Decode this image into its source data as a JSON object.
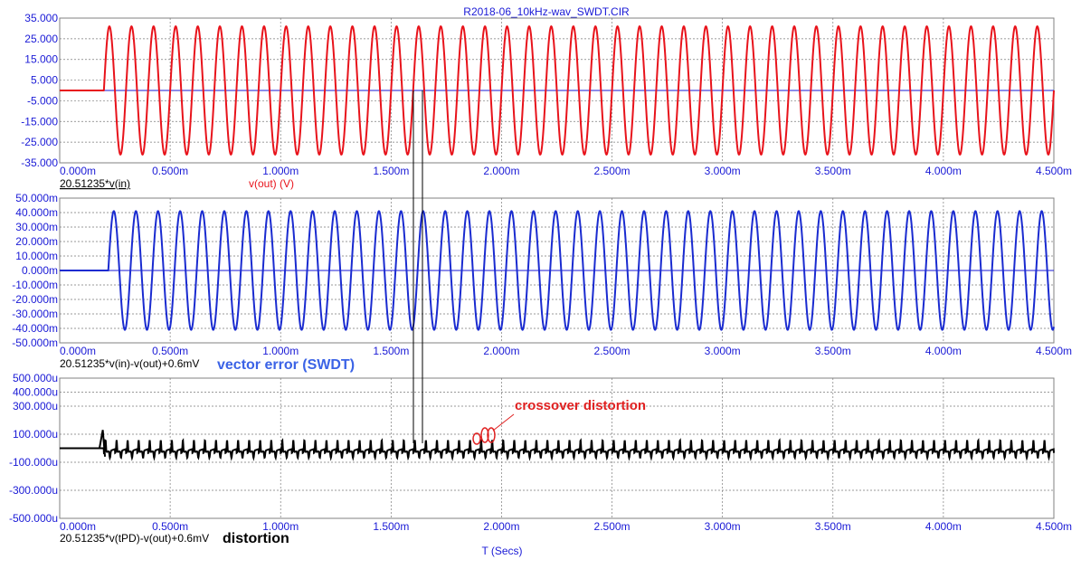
{
  "title": "R2018-06_10kHz-wav_SWDT.CIR",
  "xlabel": "T (Secs)",
  "colors": {
    "red": "#e8131b",
    "blue": "#1a2bd0",
    "black": "#000000",
    "axis_text": "#1a1ad6",
    "annotation_red": "#e02020",
    "annotation_blue": "#3b63e6",
    "grid": "#7a7a7a",
    "zero_line": "#1a1ad6"
  },
  "x_ticks": [
    "0.000m",
    "0.500m",
    "1.000m",
    "1.500m",
    "2.000m",
    "2.500m",
    "3.000m",
    "3.500m",
    "4.000m",
    "4.500m"
  ],
  "panels": [
    {
      "id": "top",
      "legend_left": "20.51235*v(in)",
      "legend_right": "v(out) (V)",
      "y_ticks": [
        "35.000",
        "25.000",
        "15.000",
        "5.000",
        "-5.000",
        "-15.000",
        "-25.000",
        "-35.000"
      ]
    },
    {
      "id": "middle",
      "legend_left": "20.51235*v(in)-v(out)+0.6mV",
      "annotation": "vector error (SWDT)",
      "y_ticks": [
        "50.000m",
        "40.000m",
        "30.000m",
        "20.000m",
        "10.000m",
        "0.000m",
        "-10.000m",
        "-20.000m",
        "-30.000m",
        "-40.000m",
        "-50.000m"
      ]
    },
    {
      "id": "bottom",
      "legend_left": "20.51235*v(tPD)-v(out)+0.6mV",
      "annotation": "distortion",
      "annotation2": "crossover distortion",
      "y_ticks": [
        "500.000u",
        "400.000u",
        "300.000u",
        "100.000u",
        "-100.000u",
        "-300.000u",
        "-500.000u"
      ]
    }
  ],
  "chart_data": [
    {
      "type": "line",
      "title": "R2018-06_10kHz-wav_SWDT.CIR",
      "xlabel": "T (Secs)",
      "ylabel": "",
      "xlim": [
        0,
        0.0045
      ],
      "ylim": [
        -35,
        35
      ],
      "series": [
        {
          "name": "20.51235*v(in)",
          "color": "#1a2bd0",
          "shape": "flat",
          "x": [
            0,
            0.0045
          ],
          "y": [
            0,
            0
          ]
        },
        {
          "name": "v(out) (V)",
          "color": "#e8131b",
          "shape": "sine",
          "frequency_hz": 10000,
          "amplitude": 31,
          "offset": 0,
          "baseline_before_start": 0,
          "start_time": 0.0002,
          "x_end": 0.0045
        }
      ]
    },
    {
      "type": "line",
      "xlabel": "",
      "ylabel": "",
      "xlim": [
        0,
        0.0045
      ],
      "ylim": [
        -50,
        50
      ],
      "series": [
        {
          "name": "20.51235*v(in)-v(out)+0.6mV",
          "color": "#1a2bd0",
          "shape": "sine",
          "frequency_hz": 10000,
          "amplitude": 41,
          "offset": 0,
          "baseline_before_start": 0,
          "start_time": 0.00022,
          "x_end": 0.0045
        }
      ]
    },
    {
      "type": "line",
      "xlabel": "",
      "ylabel": "",
      "xlim": [
        0,
        0.0045
      ],
      "ylim": [
        -500,
        500
      ],
      "series": [
        {
          "name": "20.51235*v(tPD)-v(out)+0.6mV",
          "color": "#000000",
          "shape": "crossover",
          "frequency_hz": 20000,
          "amplitude": 55,
          "offset": -20,
          "baseline_before_start": 0,
          "start_time": 0.0002,
          "x_end": 0.0045
        }
      ]
    }
  ]
}
